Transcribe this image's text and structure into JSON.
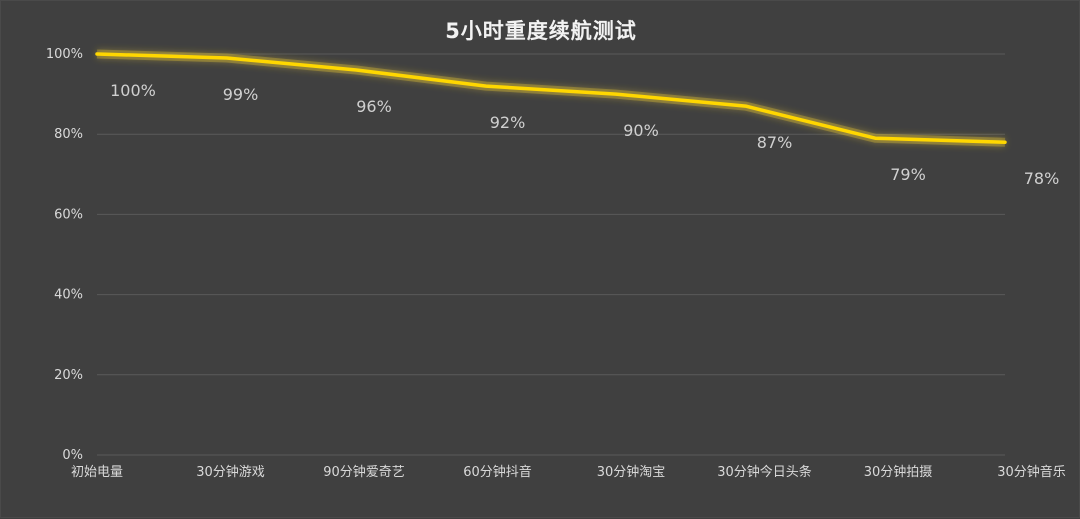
{
  "chart_data": {
    "type": "line",
    "title": "5小时重度续航测试",
    "categories": [
      "初始电量",
      "30分钟游戏",
      "90分钟爱奇艺",
      "60分钟抖音",
      "30分钟淘宝",
      "30分钟今日头条",
      "30分钟拍摄",
      "30分钟音乐"
    ],
    "series": [
      {
        "values": [
          100,
          99,
          96,
          92,
          90,
          87,
          79,
          78
        ]
      }
    ],
    "data_labels": [
      "100%",
      "99%",
      "96%",
      "92%",
      "90%",
      "87%",
      "79%",
      "78%"
    ],
    "y_ticks": [
      0,
      20,
      40,
      60,
      80,
      100
    ],
    "y_tick_labels": [
      "0%",
      "20%",
      "40%",
      "60%",
      "80%",
      "100%"
    ],
    "ylim": [
      0,
      100
    ],
    "grid": true,
    "legend": "none",
    "colors": {
      "line": "#ffd700",
      "glow": "#e0c030",
      "background": "#404040",
      "grid": "#5a5a5a",
      "text": "#d9d9d9"
    }
  }
}
